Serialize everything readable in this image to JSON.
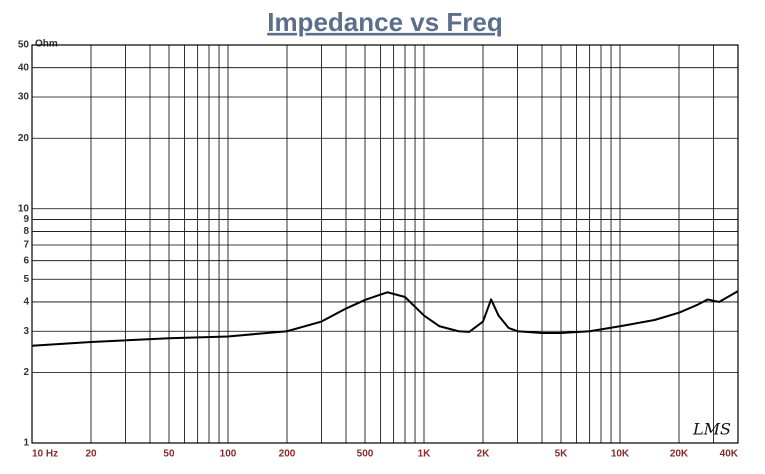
{
  "chart_data": {
    "type": "line",
    "title": "Impedance vs Freq",
    "y_label": "Ohm",
    "logo": "LMS",
    "xscale": "log",
    "yscale": "log",
    "grid": true,
    "color": "#000000",
    "x": [
      10,
      20,
      50,
      100,
      200,
      300,
      400,
      500,
      650,
      800,
      1000,
      1200,
      1500,
      1700,
      2000,
      2200,
      2400,
      2700,
      3000,
      4000,
      5000,
      7000,
      10000,
      15000,
      20000,
      25000,
      28000,
      32000,
      40000
    ],
    "values": [
      2.6,
      2.7,
      2.8,
      2.85,
      3.0,
      3.3,
      3.75,
      4.08,
      4.4,
      4.2,
      3.5,
      3.15,
      3.0,
      2.98,
      3.3,
      4.1,
      3.5,
      3.1,
      3.0,
      2.95,
      2.95,
      3.0,
      3.15,
      3.35,
      3.6,
      3.9,
      4.1,
      4.0,
      4.45
    ],
    "xlim": [
      10,
      40000
    ],
    "ylim": [
      1,
      50
    ],
    "xticks": [
      {
        "value": 10,
        "label": "10 Hz"
      },
      20,
      50,
      100,
      200,
      500,
      {
        "value": 1000,
        "label": "1K"
      },
      {
        "value": 2000,
        "label": "2K"
      },
      {
        "value": 5000,
        "label": "5K"
      },
      {
        "value": 10000,
        "label": "10K"
      },
      {
        "value": 20000,
        "label": "20K"
      },
      {
        "value": 40000,
        "label": "40K"
      }
    ],
    "xgrid": [
      10,
      20,
      30,
      40,
      50,
      60,
      70,
      80,
      90,
      100,
      200,
      300,
      400,
      500,
      600,
      700,
      800,
      900,
      1000,
      2000,
      3000,
      4000,
      5000,
      6000,
      7000,
      8000,
      9000,
      10000,
      20000,
      30000,
      40000
    ],
    "yticks": [
      1,
      2,
      3,
      4,
      5,
      6,
      7,
      8,
      9,
      10,
      20,
      30,
      40,
      50
    ]
  }
}
